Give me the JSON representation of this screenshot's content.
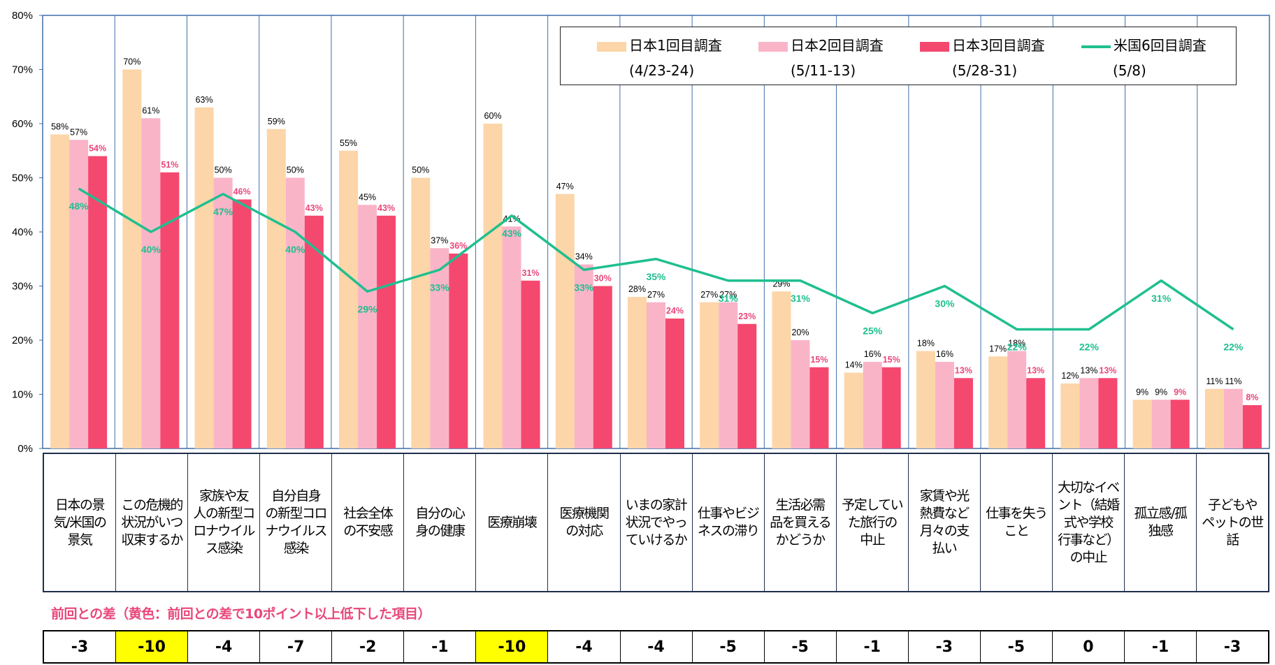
{
  "chart_data": {
    "type": "bar",
    "ylim": [
      0,
      80
    ],
    "yticks": [
      "0%",
      "10%",
      "20%",
      "30%",
      "40%",
      "50%",
      "60%",
      "70%",
      "80%"
    ],
    "categories": [
      "日本の景\n気/米国の\n景気",
      "この危機的\n状況がいつ\n収束するか",
      "家族や友\n人の新型コ\nロナウイル\nス感染",
      "自分自身\nの新型コロ\nナウイルス\n感染",
      "社会全体\nの不安感",
      "自分の心\n身の健康",
      "医療崩壊",
      "医療機関\nの対応",
      "いまの家計\n状況でやっ\nていけるか",
      "仕事やビジ\nネスの滞り",
      "生活必需\n品を買える\nかどうか",
      "予定してい\nた旅行の\n中止",
      "家賃や光\n熱費など\n月々の支\n払い",
      "仕事を失う\nこと",
      "大切なイベ\nント（結婚\n式や学校\n行事など）\nの中止",
      "孤立感/孤\n独感",
      "子どもや\nペットの世\n話"
    ],
    "series": [
      {
        "name": "日本1回目調査",
        "period": "(4/23-24)",
        "type": "bar",
        "color": "#fcd5a8",
        "values": [
          58,
          70,
          63,
          59,
          55,
          50,
          60,
          47,
          28,
          27,
          29,
          14,
          18,
          17,
          12,
          9,
          11
        ],
        "labels": [
          "58%",
          "70%",
          "63%",
          "59%",
          "55%",
          "50%",
          "60%",
          "47%",
          "28%",
          "27%",
          "29%",
          "14%",
          "18%",
          "17%",
          "12%",
          "9%",
          "11%"
        ]
      },
      {
        "name": "日本2回目調査",
        "period": "(5/11-13)",
        "type": "bar",
        "color": "#fab4c8",
        "values": [
          57,
          61,
          50,
          50,
          45,
          37,
          41,
          34,
          27,
          27,
          20,
          16,
          16,
          18,
          13,
          9,
          11
        ],
        "labels": [
          "57%",
          "61%",
          "50%",
          "50%",
          "45%",
          "37%",
          "41%",
          "34%",
          "27%",
          "27%",
          "20%",
          "16%",
          "16%",
          "18%",
          "13%",
          "9%",
          "11%"
        ]
      },
      {
        "name": "日本3回目調査",
        "period": "(5/28-31)",
        "type": "bar",
        "color": "#f5486f",
        "values": [
          54,
          51,
          46,
          43,
          43,
          36,
          31,
          30,
          24,
          23,
          15,
          15,
          13,
          13,
          13,
          9,
          8
        ],
        "labels": [
          "54%",
          "51%",
          "46%",
          "43%",
          "43%",
          "36%",
          "31%",
          "30%",
          "24%",
          "23%",
          "15%",
          "15%",
          "13%",
          "13%",
          "13%",
          "9%",
          "8%"
        ]
      },
      {
        "name": "米国6回目調査",
        "period": "(5/8)",
        "type": "line",
        "color": "#1fbf8f",
        "values": [
          48,
          40,
          47,
          40,
          29,
          33,
          43,
          33,
          35,
          31,
          31,
          25,
          30,
          22,
          22,
          31,
          22
        ],
        "labels": [
          "48%",
          "40%",
          "47%",
          "40%",
          "29%",
          "33%",
          "43%",
          "33%",
          "35%",
          "31%",
          "31%",
          "25%",
          "30%",
          "22%",
          "22%",
          "31%",
          "22%"
        ]
      }
    ]
  },
  "diff": {
    "title": "前回との差（黄色：前回との差で10ポイント以上低下した項目）",
    "values": [
      "-3",
      "-10",
      "-4",
      "-7",
      "-2",
      "-1",
      "-10",
      "-4",
      "-4",
      "-5",
      "-5",
      "-1",
      "-3",
      "-5",
      "0",
      "-1",
      "-3"
    ],
    "highlight": [
      false,
      true,
      false,
      false,
      false,
      false,
      true,
      false,
      false,
      false,
      false,
      false,
      false,
      false,
      false,
      false,
      false
    ],
    "highlight_color": "#ffff00"
  }
}
